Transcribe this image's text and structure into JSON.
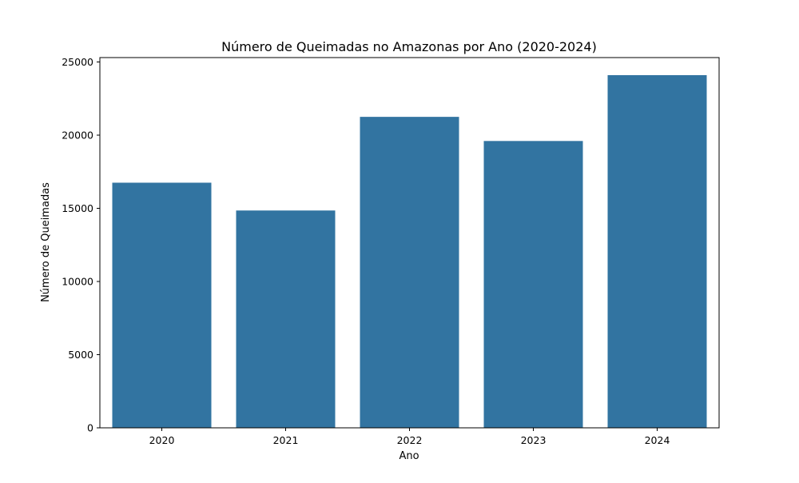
{
  "chart_data": {
    "type": "bar",
    "title": "Número de Queimadas no Amazonas por Ano (2020-2024)",
    "xlabel": "Ano",
    "ylabel": "Número de Queimadas",
    "categories": [
      "2020",
      "2021",
      "2022",
      "2023",
      "2024"
    ],
    "values": [
      16750,
      14850,
      21250,
      19600,
      24100
    ],
    "ylim": [
      0,
      25300
    ],
    "yticks": [
      0,
      5000,
      10000,
      15000,
      20000,
      25000
    ],
    "grid": false,
    "legend": "none",
    "bar_color": "#3274a1"
  }
}
